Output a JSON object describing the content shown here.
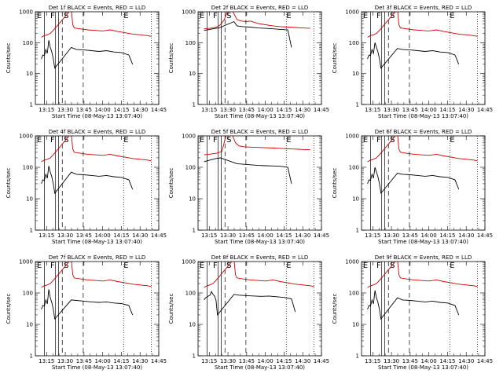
{
  "chart_data": [
    {
      "type": "line",
      "title": "Det 1f BLACK = Events, RED = LLD",
      "xlabel": "Start Time (08-May-13 13:07:40)",
      "ylabel": "Counts/sec",
      "yscale": "log",
      "ylim": [
        1,
        1000
      ],
      "xlim": [
        13.1,
        14.75
      ],
      "x_ticks": [
        "13:15",
        "13:30",
        "13:45",
        "14:00",
        "14:15",
        "14:30",
        "14:45"
      ],
      "y_ticks": [
        "1",
        "10",
        "100",
        "1000"
      ],
      "markers": [
        "E",
        "F",
        "S",
        "E"
      ],
      "series": [
        {
          "color": "#000000",
          "x": [
            13.18,
            13.2,
            13.22,
            13.24,
            13.26,
            13.28,
            13.3,
            13.32,
            13.34,
            13.36,
            13.58,
            13.65,
            13.75,
            13.85,
            13.95,
            14.05,
            14.15,
            14.25,
            14.35,
            14.4
          ],
          "values": [
            30,
            40,
            38,
            60,
            45,
            120,
            70,
            50,
            30,
            15,
            70,
            60,
            58,
            55,
            52,
            55,
            50,
            48,
            40,
            20
          ]
        },
        {
          "color": "#cc0000",
          "x": [
            13.18,
            13.22,
            13.26,
            13.3,
            13.34,
            13.58,
            13.6,
            13.62,
            13.7,
            13.8,
            13.9,
            14.0,
            14.1,
            14.2,
            14.3,
            14.4,
            14.5,
            14.6,
            14.65
          ],
          "values": [
            150,
            170,
            180,
            200,
            250,
            1200,
            380,
            300,
            280,
            260,
            250,
            240,
            260,
            230,
            210,
            190,
            180,
            170,
            160
          ]
        }
      ]
    },
    {
      "type": "line",
      "title": "Det 2f BLACK = Events, RED = LLD",
      "xlabel": "Start Time (08-May-13 13:07:40)",
      "ylabel": "Counts/sec",
      "yscale": "log",
      "ylim": [
        1,
        1000
      ],
      "xlim": [
        13.1,
        14.75
      ],
      "x_ticks": [
        "13:15",
        "13:30",
        "13:45",
        "14:00",
        "14:15",
        "14:30",
        "14:45"
      ],
      "y_ticks": [
        "1",
        "10",
        "100",
        "1000"
      ],
      "markers": [
        "E",
        "F",
        "S",
        "E"
      ],
      "series": [
        {
          "color": "#000000",
          "x": [
            13.18,
            13.22,
            13.26,
            13.3,
            13.34,
            13.38,
            13.58,
            13.62,
            13.7,
            13.8,
            13.9,
            14.0,
            14.1,
            14.2,
            14.3,
            14.35
          ],
          "values": [
            250,
            260,
            270,
            280,
            290,
            300,
            480,
            350,
            330,
            320,
            300,
            290,
            280,
            270,
            260,
            70
          ]
        },
        {
          "color": "#cc0000",
          "x": [
            13.18,
            13.25,
            13.3,
            13.35,
            13.4,
            13.45,
            13.5,
            13.55,
            13.62,
            13.68,
            13.75,
            13.8,
            13.9,
            14.0,
            14.1,
            14.2,
            14.3,
            14.4,
            14.5,
            14.6
          ],
          "values": [
            280,
            290,
            300,
            320,
            380,
            550,
            1200,
            1200,
            560,
            500,
            480,
            500,
            420,
            380,
            350,
            330,
            320,
            310,
            300,
            290
          ]
        }
      ]
    },
    {
      "type": "line",
      "title": "Det 3f BLACK = Events, RED = LLD",
      "xlabel": "Start Time (08-May-13 13:07:40)",
      "ylabel": "Counts/sec",
      "yscale": "log",
      "ylim": [
        1,
        1000
      ],
      "xlim": [
        13.1,
        14.75
      ],
      "x_ticks": [
        "13:15",
        "13:30",
        "13:45",
        "14:00",
        "14:15",
        "14:30",
        "14:45"
      ],
      "y_ticks": [
        "1",
        "10",
        "100",
        "1000"
      ],
      "markers": [
        "E",
        "F",
        "S",
        "E"
      ],
      "series": [
        {
          "color": "#000000",
          "x": [
            13.18,
            13.2,
            13.22,
            13.24,
            13.26,
            13.28,
            13.3,
            13.32,
            13.34,
            13.36,
            13.58,
            13.65,
            13.75,
            13.85,
            13.95,
            14.05,
            14.15,
            14.25,
            14.35,
            14.4
          ],
          "values": [
            30,
            40,
            38,
            60,
            45,
            100,
            70,
            50,
            30,
            15,
            65,
            60,
            58,
            55,
            52,
            55,
            50,
            48,
            40,
            20
          ]
        },
        {
          "color": "#cc0000",
          "x": [
            13.18,
            13.22,
            13.26,
            13.3,
            13.34,
            13.58,
            13.6,
            13.62,
            13.7,
            13.8,
            13.9,
            14.0,
            14.1,
            14.2,
            14.3,
            14.4,
            14.5,
            14.6,
            14.65
          ],
          "values": [
            150,
            170,
            180,
            200,
            250,
            1200,
            380,
            300,
            280,
            260,
            250,
            240,
            260,
            230,
            210,
            190,
            180,
            170,
            160
          ]
        }
      ]
    },
    {
      "type": "line",
      "title": "Det 4f BLACK = Events, RED = LLD",
      "xlabel": "Start Time (08-May-13 13:07:40)",
      "ylabel": "Counts/sec",
      "yscale": "log",
      "ylim": [
        1,
        1000
      ],
      "xlim": [
        13.1,
        14.75
      ],
      "x_ticks": [
        "13:15",
        "13:30",
        "13:45",
        "14:00",
        "14:15",
        "14:30",
        "14:45"
      ],
      "y_ticks": [
        "1",
        "10",
        "100",
        "1000"
      ],
      "markers": [
        "E",
        "F",
        "S",
        "E"
      ],
      "series": [
        {
          "color": "#000000",
          "x": [
            13.18,
            13.2,
            13.22,
            13.24,
            13.26,
            13.28,
            13.3,
            13.32,
            13.34,
            13.36,
            13.58,
            13.65,
            13.75,
            13.85,
            13.95,
            14.05,
            14.15,
            14.25,
            14.35,
            14.4
          ],
          "values": [
            30,
            40,
            38,
            60,
            45,
            110,
            70,
            50,
            30,
            15,
            70,
            60,
            58,
            55,
            52,
            55,
            50,
            48,
            40,
            20
          ]
        },
        {
          "color": "#cc0000",
          "x": [
            13.18,
            13.22,
            13.26,
            13.3,
            13.34,
            13.58,
            13.6,
            13.62,
            13.7,
            13.8,
            13.9,
            14.0,
            14.1,
            14.2,
            14.3,
            14.4,
            14.5,
            14.6,
            14.65
          ],
          "values": [
            150,
            170,
            180,
            200,
            250,
            1200,
            380,
            300,
            280,
            260,
            250,
            240,
            260,
            230,
            210,
            190,
            180,
            170,
            160
          ]
        }
      ]
    },
    {
      "type": "line",
      "title": "Det 5f BLACK = Events, RED = LLD",
      "xlabel": "Start Time (08-May-13 13:07:40)",
      "ylabel": "Counts/sec",
      "yscale": "log",
      "ylim": [
        1,
        1000
      ],
      "xlim": [
        13.1,
        14.75
      ],
      "x_ticks": [
        "13:15",
        "13:30",
        "13:45",
        "14:00",
        "14:15",
        "14:30",
        "14:45"
      ],
      "y_ticks": [
        "1",
        "10",
        "100",
        "1000"
      ],
      "markers": [
        "E",
        "F",
        "S",
        "E"
      ],
      "series": [
        {
          "color": "#000000",
          "x": [
            13.18,
            13.22,
            13.26,
            13.3,
            13.34,
            13.4,
            13.62,
            13.7,
            13.8,
            13.9,
            14.0,
            14.1,
            14.2,
            14.3,
            14.35
          ],
          "values": [
            150,
            160,
            170,
            180,
            190,
            200,
            130,
            125,
            120,
            115,
            112,
            110,
            108,
            100,
            30
          ]
        },
        {
          "color": "#cc0000",
          "x": [
            13.18,
            13.25,
            13.3,
            13.35,
            13.42,
            13.48,
            13.55,
            13.6,
            13.65,
            13.72,
            13.8,
            13.9,
            14.0,
            14.1,
            14.2,
            14.3,
            14.4,
            14.5,
            14.6
          ],
          "values": [
            250,
            260,
            270,
            280,
            320,
            1200,
            1200,
            600,
            480,
            450,
            440,
            430,
            420,
            410,
            400,
            390,
            380,
            370,
            360
          ]
        }
      ]
    },
    {
      "type": "line",
      "title": "Det 6f BLACK = Events, RED = LLD",
      "xlabel": "Start Time (08-May-13 13:07:40)",
      "ylabel": "Counts/sec",
      "yscale": "log",
      "ylim": [
        1,
        1000
      ],
      "xlim": [
        13.1,
        14.75
      ],
      "x_ticks": [
        "13:15",
        "13:30",
        "13:45",
        "14:00",
        "14:15",
        "14:30",
        "14:45"
      ],
      "y_ticks": [
        "1",
        "10",
        "100",
        "1000"
      ],
      "markers": [
        "E",
        "F",
        "S",
        "E"
      ],
      "series": [
        {
          "color": "#000000",
          "x": [
            13.18,
            13.2,
            13.22,
            13.24,
            13.26,
            13.28,
            13.3,
            13.32,
            13.34,
            13.36,
            13.58,
            13.65,
            13.75,
            13.85,
            13.95,
            14.05,
            14.15,
            14.25,
            14.35,
            14.4
          ],
          "values": [
            30,
            40,
            38,
            60,
            45,
            100,
            70,
            50,
            30,
            15,
            65,
            60,
            58,
            55,
            52,
            55,
            50,
            48,
            40,
            20
          ]
        },
        {
          "color": "#cc0000",
          "x": [
            13.18,
            13.22,
            13.26,
            13.3,
            13.34,
            13.58,
            13.6,
            13.62,
            13.7,
            13.8,
            13.9,
            14.0,
            14.1,
            14.2,
            14.3,
            14.4,
            14.5,
            14.6,
            14.65
          ],
          "values": [
            150,
            170,
            180,
            200,
            250,
            1200,
            380,
            300,
            280,
            260,
            250,
            240,
            260,
            230,
            210,
            190,
            180,
            170,
            160
          ]
        }
      ]
    },
    {
      "type": "line",
      "title": "Det 7f BLACK = Events, RED = LLD",
      "xlabel": "Start Time (08-May-13 13:07:40)",
      "ylabel": "Counts/sec",
      "yscale": "log",
      "ylim": [
        1,
        1000
      ],
      "xlim": [
        13.1,
        14.75
      ],
      "x_ticks": [
        "13:15",
        "13:30",
        "13:45",
        "14:00",
        "14:15",
        "14:30",
        "14:45"
      ],
      "y_ticks": [
        "1",
        "10",
        "100",
        "1000"
      ],
      "markers": [
        "E",
        "F",
        "S",
        "E"
      ],
      "series": [
        {
          "color": "#000000",
          "x": [
            13.18,
            13.2,
            13.22,
            13.24,
            13.26,
            13.28,
            13.3,
            13.32,
            13.34,
            13.36,
            13.58,
            13.65,
            13.75,
            13.85,
            13.95,
            14.05,
            14.15,
            14.25,
            14.35,
            14.4
          ],
          "values": [
            30,
            40,
            38,
            60,
            45,
            130,
            70,
            50,
            30,
            15,
            60,
            58,
            55,
            52,
            50,
            52,
            48,
            46,
            40,
            20
          ]
        },
        {
          "color": "#cc0000",
          "x": [
            13.18,
            13.22,
            13.26,
            13.3,
            13.34,
            13.58,
            13.6,
            13.62,
            13.7,
            13.8,
            13.9,
            14.0,
            14.1,
            14.2,
            14.3,
            14.4,
            14.5,
            14.6,
            14.65
          ],
          "values": [
            150,
            170,
            180,
            200,
            250,
            1200,
            380,
            300,
            280,
            260,
            250,
            240,
            260,
            230,
            210,
            190,
            180,
            170,
            160
          ]
        }
      ]
    },
    {
      "type": "line",
      "title": "Det 8f BLACK = Events, RED = LLD",
      "xlabel": "Start Time (08-May-13 13:07:40)",
      "ylabel": "Counts/sec",
      "yscale": "log",
      "ylim": [
        1,
        1000
      ],
      "xlim": [
        13.1,
        14.75
      ],
      "x_ticks": [
        "13:15",
        "13:30",
        "13:45",
        "14:00",
        "14:15",
        "14:30",
        "14:45"
      ],
      "y_ticks": [
        "1",
        "10",
        "100",
        "1000"
      ],
      "markers": [
        "E",
        "F",
        "S",
        "E"
      ],
      "series": [
        {
          "color": "#000000",
          "x": [
            13.18,
            13.2,
            13.22,
            13.24,
            13.26,
            13.28,
            13.3,
            13.32,
            13.34,
            13.36,
            13.58,
            13.65,
            13.75,
            13.85,
            13.95,
            14.05,
            14.15,
            14.25,
            14.35,
            14.4
          ],
          "values": [
            60,
            70,
            75,
            80,
            85,
            110,
            90,
            80,
            60,
            20,
            90,
            85,
            82,
            80,
            78,
            80,
            76,
            72,
            65,
            25
          ]
        },
        {
          "color": "#cc0000",
          "x": [
            13.18,
            13.22,
            13.26,
            13.3,
            13.34,
            13.58,
            13.6,
            13.62,
            13.7,
            13.8,
            13.9,
            14.0,
            14.1,
            14.2,
            14.3,
            14.4,
            14.5,
            14.6,
            14.65
          ],
          "values": [
            150,
            170,
            180,
            200,
            250,
            1200,
            380,
            300,
            280,
            260,
            250,
            240,
            260,
            230,
            210,
            190,
            180,
            170,
            160
          ]
        }
      ]
    },
    {
      "type": "line",
      "title": "Det 9f BLACK = Events, RED = LLD",
      "xlabel": "Start Time (08-May-13 13:07:40)",
      "ylabel": "Counts/sec",
      "yscale": "log",
      "ylim": [
        1,
        1000
      ],
      "xlim": [
        13.1,
        14.75
      ],
      "x_ticks": [
        "13:15",
        "13:30",
        "13:45",
        "14:00",
        "14:15",
        "14:30",
        "14:45"
      ],
      "y_ticks": [
        "1",
        "10",
        "100",
        "1000"
      ],
      "markers": [
        "E",
        "F",
        "S",
        "E"
      ],
      "series": [
        {
          "color": "#000000",
          "x": [
            13.18,
            13.2,
            13.22,
            13.24,
            13.26,
            13.28,
            13.3,
            13.32,
            13.34,
            13.36,
            13.58,
            13.65,
            13.75,
            13.85,
            13.95,
            14.05,
            14.15,
            14.25,
            14.35,
            14.4
          ],
          "values": [
            30,
            40,
            38,
            60,
            45,
            120,
            70,
            50,
            30,
            15,
            70,
            60,
            58,
            55,
            52,
            55,
            50,
            48,
            40,
            20
          ]
        },
        {
          "color": "#cc0000",
          "x": [
            13.18,
            13.22,
            13.26,
            13.3,
            13.34,
            13.58,
            13.6,
            13.62,
            13.7,
            13.8,
            13.9,
            14.0,
            14.1,
            14.2,
            14.3,
            14.4,
            14.5,
            14.6,
            14.65
          ],
          "values": [
            150,
            170,
            180,
            200,
            250,
            1200,
            380,
            300,
            280,
            260,
            250,
            240,
            260,
            230,
            210,
            190,
            180,
            170,
            160
          ]
        }
      ]
    }
  ]
}
